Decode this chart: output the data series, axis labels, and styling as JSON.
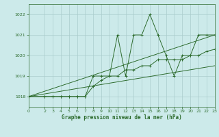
{
  "title": "Graphe pression niveau de la mer (hPa)",
  "background_color": "#cceaea",
  "grid_color": "#aacccc",
  "line_color": "#2d6b2d",
  "xlim": [
    0,
    23
  ],
  "ylim": [
    1017.5,
    1022.5
  ],
  "yticks": [
    1018,
    1019,
    1020,
    1021,
    1022
  ],
  "xticks": [
    0,
    2,
    3,
    4,
    5,
    6,
    7,
    8,
    9,
    10,
    11,
    12,
    13,
    14,
    15,
    16,
    17,
    18,
    19,
    20,
    21,
    22,
    23
  ],
  "series": [
    {
      "has_markers": true,
      "x": [
        0,
        2,
        3,
        4,
        5,
        6,
        7,
        8,
        9,
        10,
        11,
        12,
        13,
        14,
        15,
        16,
        17,
        18,
        19,
        20,
        21,
        22,
        23
      ],
      "y": [
        1018.0,
        1018.0,
        1018.0,
        1018.0,
        1018.0,
        1018.0,
        1018.0,
        1019.0,
        1019.0,
        1019.0,
        1021.0,
        1019.0,
        1021.0,
        1021.0,
        1022.0,
        1021.0,
        1020.0,
        1019.0,
        1020.0,
        1020.0,
        1021.0,
        1021.0,
        1021.0
      ]
    },
    {
      "has_markers": true,
      "x": [
        0,
        2,
        3,
        4,
        5,
        6,
        7,
        8,
        9,
        10,
        11,
        12,
        13,
        14,
        15,
        16,
        17,
        18,
        19,
        20,
        21,
        22,
        23
      ],
      "y": [
        1018.0,
        1018.0,
        1018.0,
        1018.0,
        1018.0,
        1018.0,
        1018.0,
        1018.5,
        1018.8,
        1019.0,
        1019.0,
        1019.3,
        1019.3,
        1019.5,
        1019.5,
        1019.8,
        1019.8,
        1019.8,
        1019.8,
        1020.0,
        1020.0,
        1020.2,
        1020.3
      ]
    },
    {
      "has_markers": false,
      "x": [
        0,
        23
      ],
      "y": [
        1018.0,
        1021.0
      ]
    },
    {
      "has_markers": false,
      "x": [
        0,
        23
      ],
      "y": [
        1018.0,
        1019.5
      ]
    }
  ]
}
